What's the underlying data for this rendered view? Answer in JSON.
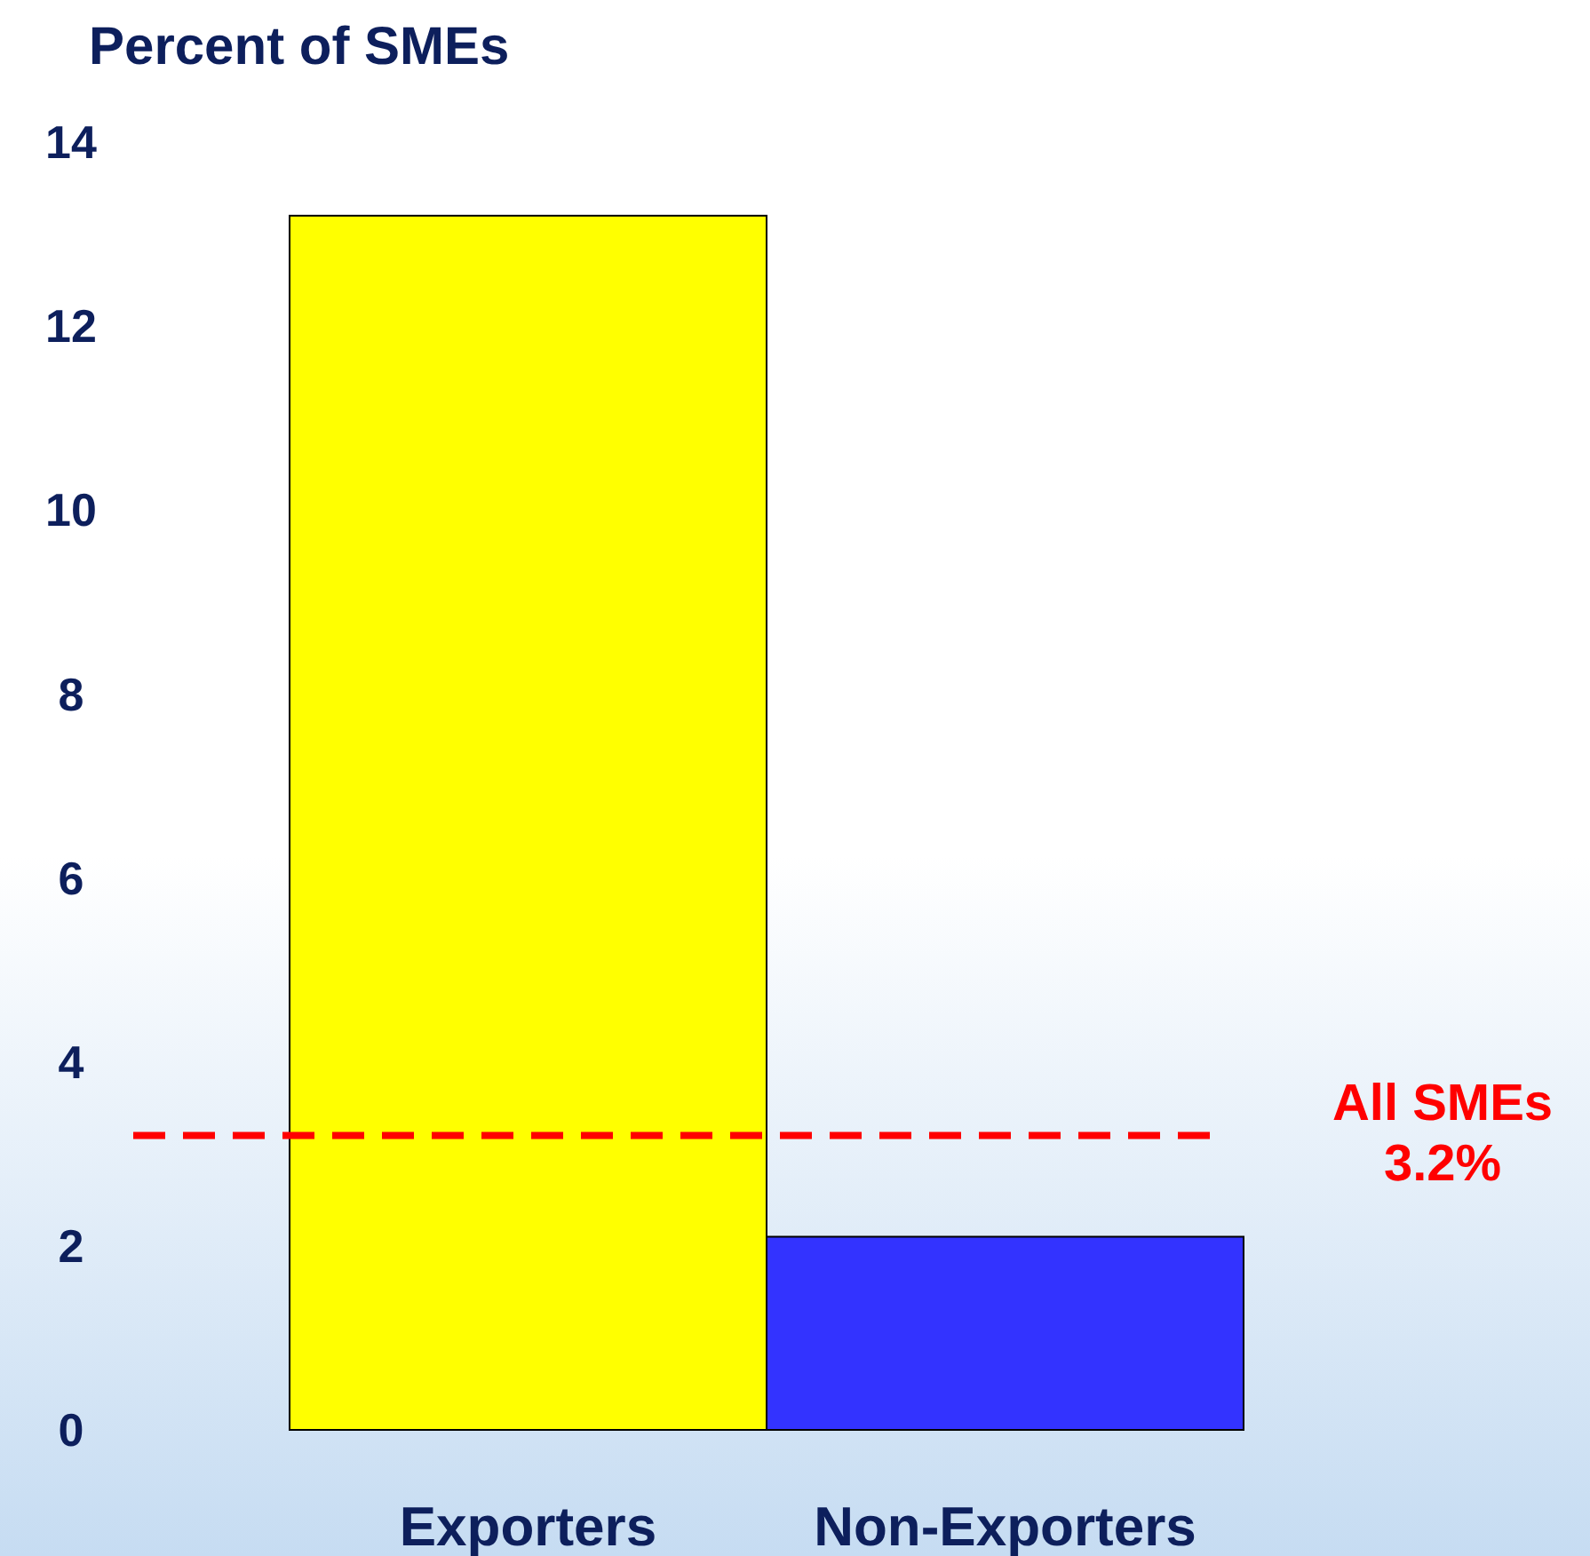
{
  "chart_data": {
    "type": "bar",
    "title": "Percent of SMEs",
    "categories": [
      "Exporters",
      "Non-Exporters"
    ],
    "values": [
      13.2,
      2.1
    ],
    "colors": [
      "#ffff00",
      "#3333ff"
    ],
    "ylim": [
      0,
      14
    ],
    "yticks": [
      0,
      2,
      4,
      6,
      8,
      10,
      12,
      14
    ],
    "grid": false,
    "ref_lines": [
      {
        "axis": "y",
        "value": 3.2,
        "label": "All SMEs\n3.2%",
        "color": "#ff0000",
        "line_style": "dashed"
      }
    ]
  }
}
